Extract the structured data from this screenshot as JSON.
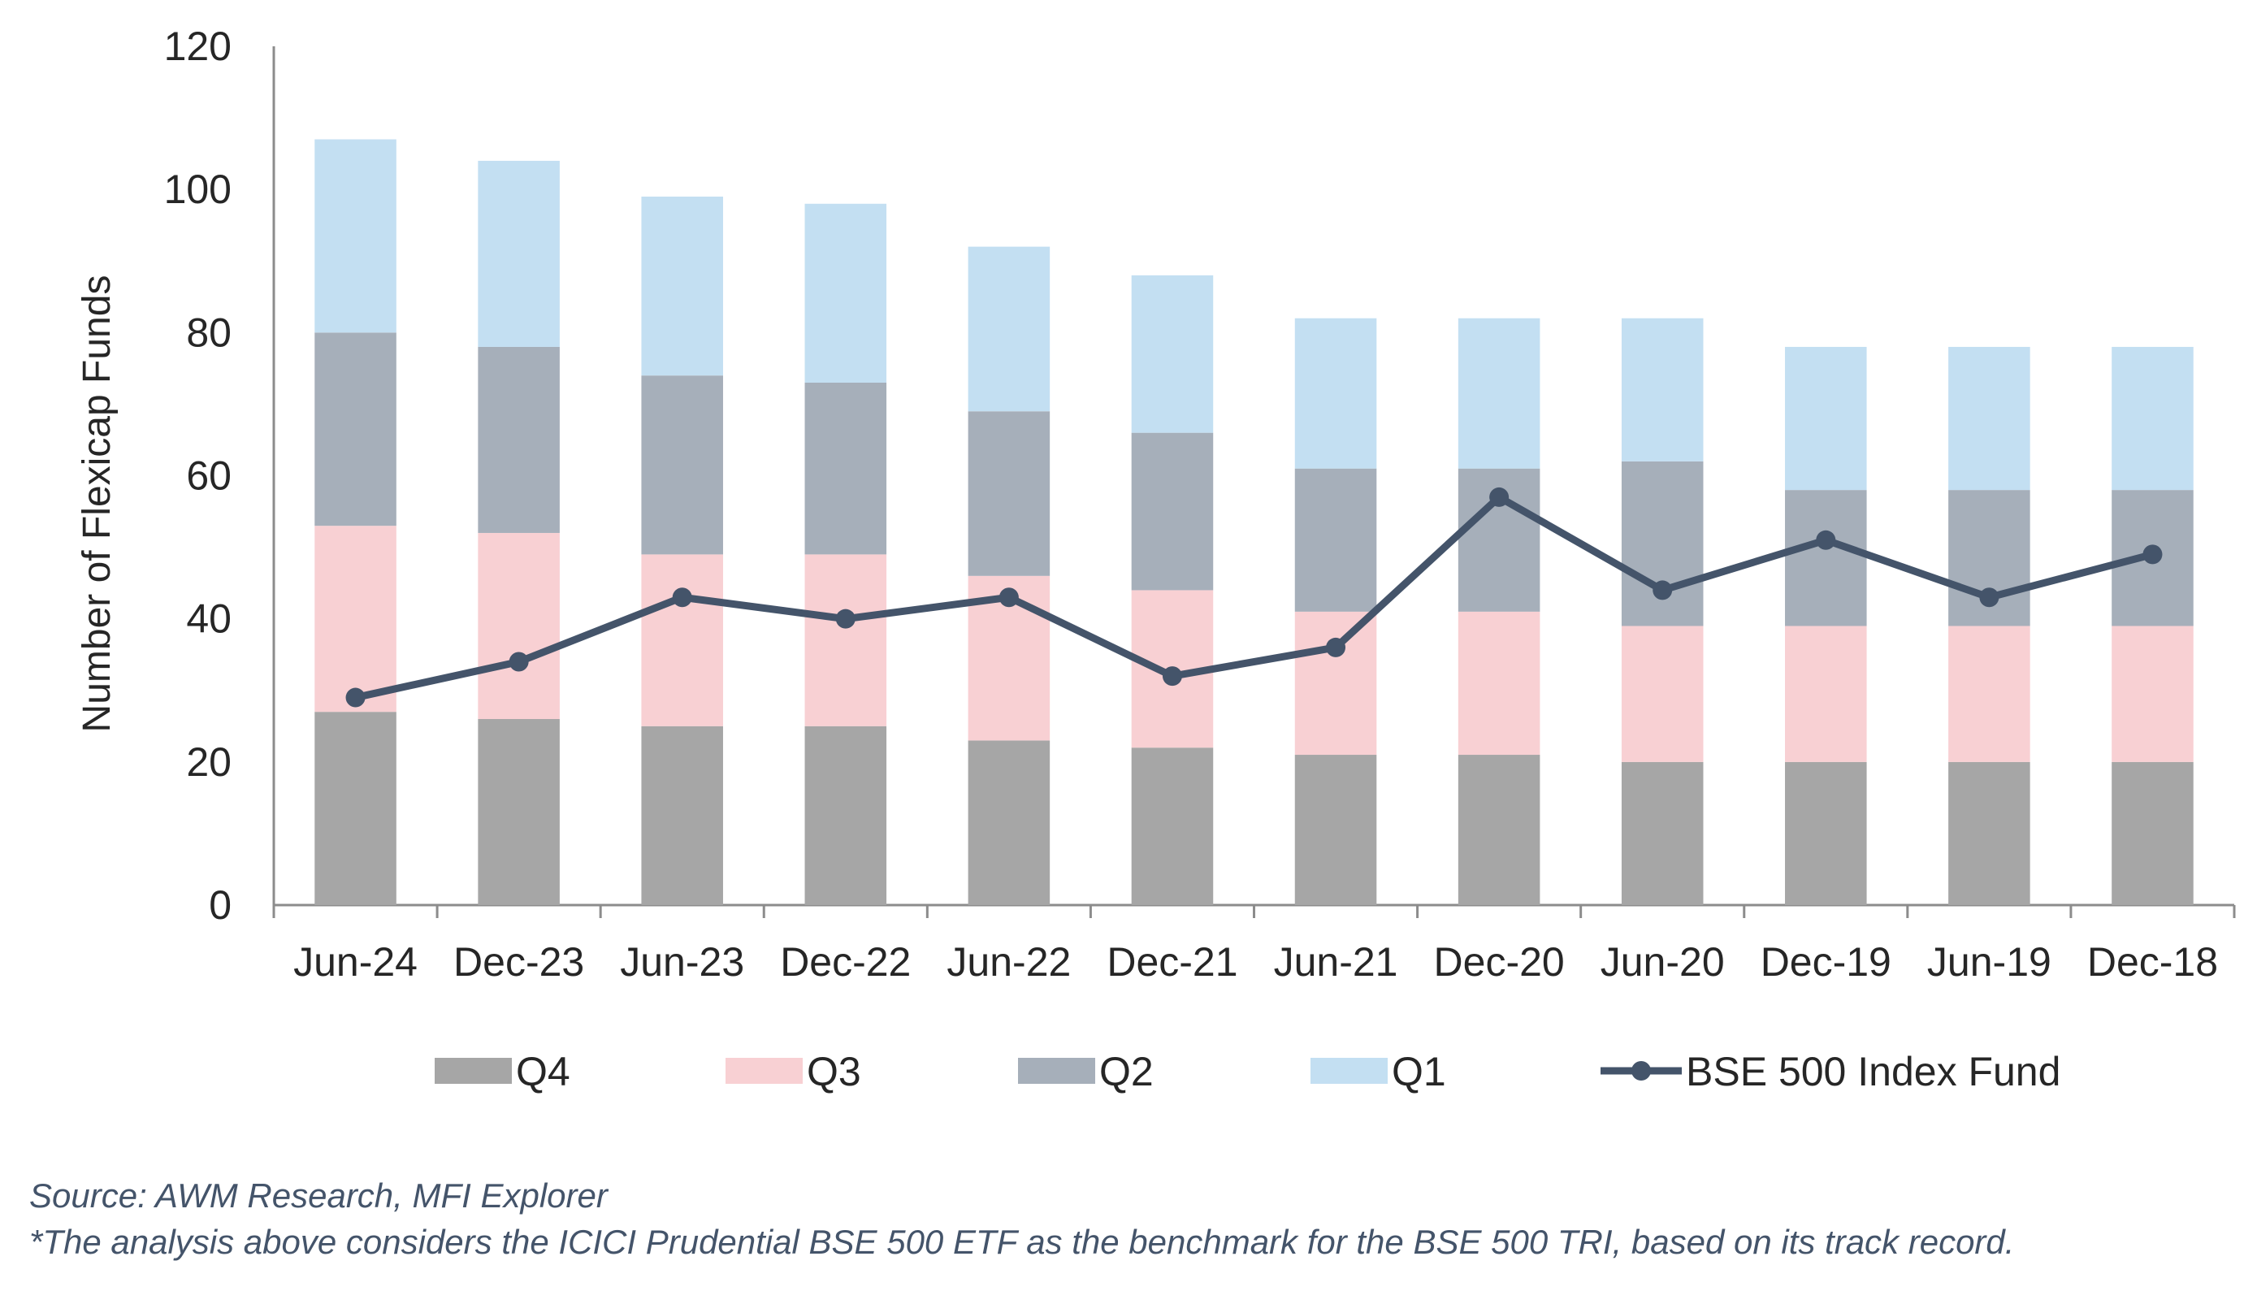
{
  "chart_data": {
    "type": "bar",
    "stacked": true,
    "title": "",
    "xlabel": "",
    "ylabel": "Number of Flexicap Funds",
    "ylim": [
      0,
      120
    ],
    "yticks": [
      0,
      20,
      40,
      60,
      80,
      100,
      120
    ],
    "grid": false,
    "legend_position": "bottom",
    "categories": [
      "Jun-24",
      "Dec-23",
      "Jun-23",
      "Dec-22",
      "Jun-22",
      "Dec-21",
      "Jun-21",
      "Dec-20",
      "Jun-20",
      "Dec-19",
      "Jun-19",
      "Dec-18"
    ],
    "series": [
      {
        "name": "Q4",
        "type": "bar",
        "color": "#a6a6a6",
        "values": [
          27,
          26,
          25,
          25,
          23,
          22,
          21,
          21,
          20,
          20,
          20,
          20
        ]
      },
      {
        "name": "Q3",
        "type": "bar",
        "color": "#f8d0d3",
        "values": [
          26,
          26,
          24,
          24,
          23,
          22,
          20,
          20,
          19,
          19,
          19,
          19
        ]
      },
      {
        "name": "Q2",
        "type": "bar",
        "color": "#a6afba",
        "values": [
          27,
          26,
          25,
          24,
          23,
          22,
          20,
          20,
          23,
          19,
          19,
          19
        ]
      },
      {
        "name": "Q1",
        "type": "bar",
        "color": "#c3dff2",
        "values": [
          27,
          26,
          25,
          25,
          23,
          22,
          21,
          21,
          20,
          20,
          20,
          20
        ]
      },
      {
        "name": "BSE 500 Index Fund",
        "type": "line",
        "color": "#44546a",
        "values": [
          29,
          34,
          43,
          40,
          43,
          32,
          36,
          57,
          44,
          51,
          43,
          49
        ]
      }
    ]
  },
  "footnotes": {
    "source": "Source: AWM Research, MFI Explorer",
    "note": "*The analysis above considers the ICICI Prudential BSE 500 ETF as the benchmark for the BSE 500 TRI, based on its track record."
  }
}
